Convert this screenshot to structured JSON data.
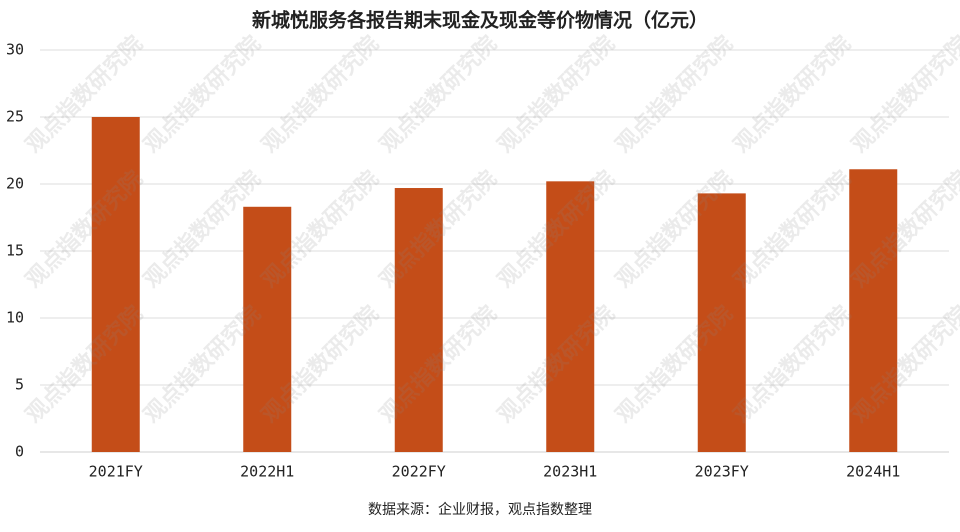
{
  "chart_data": {
    "type": "bar",
    "title": "新城悦服务各报告期末现金及现金等价物情况（亿元）",
    "categories": [
      "2021FY",
      "2022H1",
      "2022FY",
      "2023H1",
      "2023FY",
      "2024H1"
    ],
    "values": [
      25.0,
      18.3,
      19.7,
      20.2,
      19.3,
      21.1
    ],
    "color": "#c44d18",
    "ylim": [
      0,
      30
    ],
    "yticks": [
      0,
      5,
      10,
      15,
      20,
      25,
      30
    ],
    "grid": true,
    "source": "数据来源：企业财报，观点指数整理",
    "watermark": "观点指数研究院"
  }
}
